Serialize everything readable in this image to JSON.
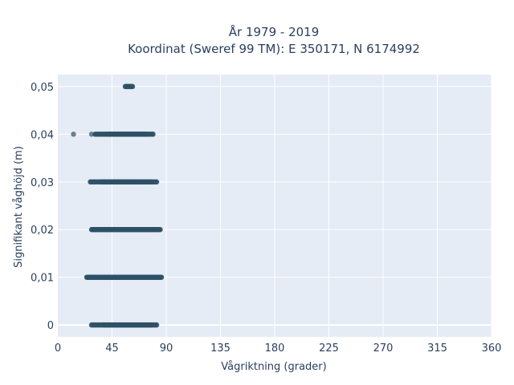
{
  "chart_data": {
    "type": "scatter",
    "title_line1": "År 1979 - 2019",
    "title_line2": "Koordinat (Sweref 99 TM): E 350171, N 6174992",
    "xlabel": "Vågriktning (grader)",
    "ylabel": "Signifikant våghöjd (m)",
    "xlim": [
      0,
      360
    ],
    "ylim": [
      -0.0025,
      0.0525
    ],
    "x_ticks": [
      0,
      45,
      90,
      135,
      180,
      225,
      270,
      315,
      360
    ],
    "x_tick_labels": [
      "0",
      "45",
      "90",
      "135",
      "180",
      "225",
      "270",
      "315",
      "360"
    ],
    "y_ticks": [
      0,
      0.01,
      0.02,
      0.03,
      0.04,
      0.05
    ],
    "y_tick_labels": [
      "0",
      "0,01",
      "0,02",
      "0,03",
      "0,04",
      "0,05"
    ],
    "grid": true,
    "colors": {
      "point": "#2e5166",
      "plot_bg": "#e5ecf6",
      "grid": "#ffffff",
      "text": "#2a3f5f"
    },
    "bands": [
      {
        "y": 0.0,
        "x_from": 28,
        "x_to": 82,
        "dense_from": 38,
        "dense_to": 78
      },
      {
        "y": 0.01,
        "x_from": 24,
        "x_to": 86,
        "dense_from": 25,
        "dense_to": 85
      },
      {
        "y": 0.02,
        "x_from": 28,
        "x_to": 85,
        "dense_from": 29,
        "dense_to": 84
      },
      {
        "y": 0.03,
        "x_from": 27,
        "x_to": 82,
        "dense_from": 36,
        "dense_to": 78
      },
      {
        "y": 0.04,
        "x_from": 31,
        "x_to": 79,
        "dense_from": 40,
        "dense_to": 74
      },
      {
        "y": 0.05,
        "x_from": 56,
        "x_to": 62,
        "dense_from": 57,
        "dense_to": 61
      }
    ],
    "points": [
      {
        "x": 13,
        "y": 0.04
      },
      {
        "x": 28,
        "y": 0.04
      }
    ]
  }
}
